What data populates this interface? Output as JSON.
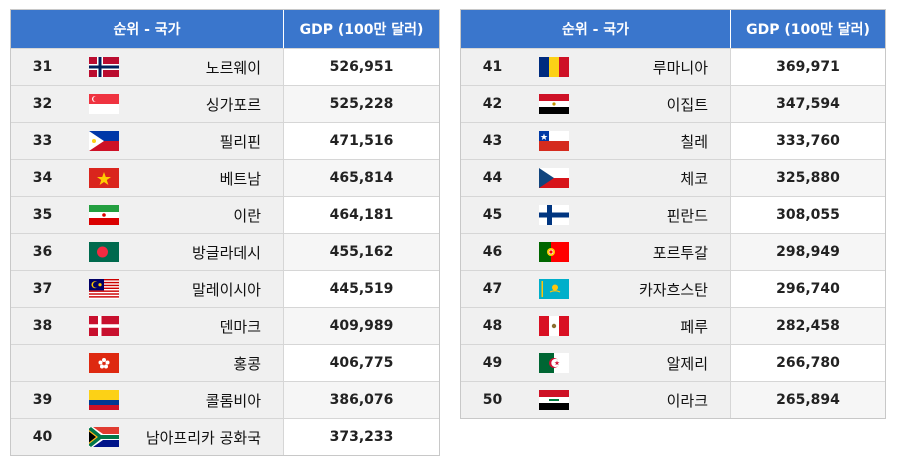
{
  "headers": {
    "rank_country": "순위 - 국가",
    "gdp": "GDP (100만 달러)"
  },
  "left": [
    {
      "rank": "31",
      "country": "노르웨이",
      "gdp": "526,951",
      "flag": "norway"
    },
    {
      "rank": "32",
      "country": "싱가포르",
      "gdp": "525,228",
      "flag": "singapore"
    },
    {
      "rank": "33",
      "country": "필리핀",
      "gdp": "471,516",
      "flag": "philippines"
    },
    {
      "rank": "34",
      "country": "베트남",
      "gdp": "465,814",
      "flag": "vietnam"
    },
    {
      "rank": "35",
      "country": "이란",
      "gdp": "464,181",
      "flag": "iran"
    },
    {
      "rank": "36",
      "country": "방글라데시",
      "gdp": "455,162",
      "flag": "bangladesh"
    },
    {
      "rank": "37",
      "country": "말레이시아",
      "gdp": "445,519",
      "flag": "malaysia"
    },
    {
      "rank": "38",
      "country": "덴마크",
      "gdp": "409,989",
      "flag": "denmark"
    },
    {
      "rank": "",
      "country": "홍콩",
      "gdp": "406,775",
      "flag": "hongkong"
    },
    {
      "rank": "39",
      "country": "콜롬비아",
      "gdp": "386,076",
      "flag": "colombia"
    },
    {
      "rank": "40",
      "country": "남아프리카 공화국",
      "gdp": "373,233",
      "flag": "southafrica"
    }
  ],
  "right": [
    {
      "rank": "41",
      "country": "루마니아",
      "gdp": "369,971",
      "flag": "romania"
    },
    {
      "rank": "42",
      "country": "이집트",
      "gdp": "347,594",
      "flag": "egypt"
    },
    {
      "rank": "43",
      "country": "칠레",
      "gdp": "333,760",
      "flag": "chile"
    },
    {
      "rank": "44",
      "country": "체코",
      "gdp": "325,880",
      "flag": "czech"
    },
    {
      "rank": "45",
      "country": "핀란드",
      "gdp": "308,055",
      "flag": "finland"
    },
    {
      "rank": "46",
      "country": "포르투갈",
      "gdp": "298,949",
      "flag": "portugal"
    },
    {
      "rank": "47",
      "country": "카자흐스탄",
      "gdp": "296,740",
      "flag": "kazakhstan"
    },
    {
      "rank": "48",
      "country": "페루",
      "gdp": "282,458",
      "flag": "peru"
    },
    {
      "rank": "49",
      "country": "알제리",
      "gdp": "266,780",
      "flag": "algeria"
    },
    {
      "rank": "50",
      "country": "이라크",
      "gdp": "265,894",
      "flag": "iraq"
    }
  ]
}
